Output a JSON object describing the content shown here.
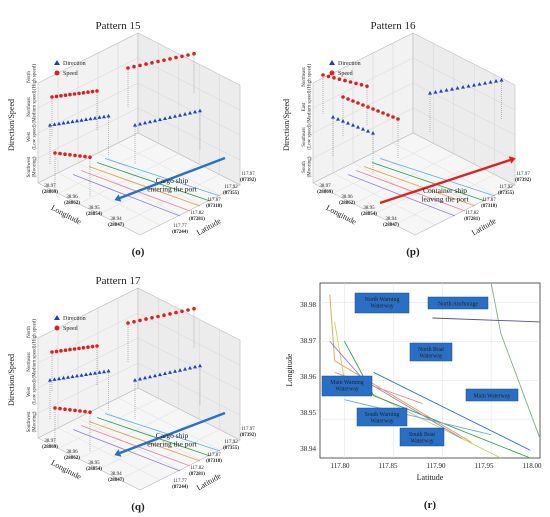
{
  "panels": [
    {
      "id": "o",
      "caption": "(o)",
      "title": "Pattern 15",
      "legend": {
        "direction": "Direction",
        "speed": "Speed"
      },
      "zlabel": "Direction/Speed",
      "zticks": [
        "North\n(High speed)",
        "Northeast\n(Medium speed)",
        "West\n(Low speed)",
        "Southwest\n(Mooring)"
      ],
      "lon_label": "Longitude",
      "lat_label": "Latitude",
      "lon_ticks": [
        {
          "v": "38.97",
          "s": "(28869)"
        },
        {
          "v": "38.96",
          "s": "(28862)"
        },
        {
          "v": "38.95",
          "s": "(28854)"
        },
        {
          "v": "38.94",
          "s": "(28847)"
        }
      ],
      "lat_ticks": [
        {
          "v": "117.97",
          "s": "(87392)"
        },
        {
          "v": "117.92",
          "s": "(87355)"
        },
        {
          "v": "117.87",
          "s": "(87318)"
        },
        {
          "v": "117.82",
          "s": "(87281)"
        },
        {
          "v": "117.77",
          "s": "(87244)"
        }
      ],
      "annotation": "Cargo ship\nentering the port",
      "arrow_color": "#2a70c8",
      "arrow_dir": "in"
    },
    {
      "id": "p",
      "caption": "(p)",
      "title": "Pattern 16",
      "legend": {
        "direction": "Direction",
        "speed": "Speed"
      },
      "zlabel": "Direction/Speed",
      "zticks": [
        "Northeast\n(High speed)",
        "East\n(Medium speed)",
        "Southeast\n(Low speed)",
        "South\n(Mooring)"
      ],
      "lon_label": "Longitude",
      "lat_label": "Latitude",
      "lon_ticks": [
        {
          "v": "38.97",
          "s": "(28869)"
        },
        {
          "v": "38.96",
          "s": "(28862)"
        },
        {
          "v": "38.95",
          "s": "(28854)"
        },
        {
          "v": "38.94",
          "s": "(28847)"
        }
      ],
      "lat_ticks": [
        {
          "v": "117.97",
          "s": "(87392)"
        },
        {
          "v": "117.92",
          "s": "(87355)"
        },
        {
          "v": "117.87",
          "s": "(87318)"
        },
        {
          "v": "117.82",
          "s": "(87281)"
        }
      ],
      "annotation": "Container ship\nleaving the port",
      "arrow_color": "#e02020",
      "arrow_dir": "out"
    },
    {
      "id": "q",
      "caption": "(q)",
      "title": "Pattern 17",
      "legend": {
        "direction": "Direction",
        "speed": "Speed"
      },
      "zlabel": "Direction/Speed",
      "zticks": [
        "North\n(High speed)",
        "Northeast\n(Medium speed)",
        "West\n(Low speed)",
        "Southwest\n(Mooring)"
      ],
      "lon_label": "Longitude",
      "lat_label": "Latitude",
      "lon_ticks": [
        {
          "v": "38.97",
          "s": "(28869)"
        },
        {
          "v": "38.96",
          "s": "(28862)"
        },
        {
          "v": "38.95",
          "s": "(28854)"
        },
        {
          "v": "38.94",
          "s": "(28847)"
        }
      ],
      "lat_ticks": [
        {
          "v": "117.97",
          "s": "(87392)"
        },
        {
          "v": "117.92",
          "s": "(87355)"
        },
        {
          "v": "117.87",
          "s": "(87318)"
        },
        {
          "v": "117.82",
          "s": "(87281)"
        },
        {
          "v": "117.77",
          "s": "(87244)"
        }
      ],
      "annotation": "Cargo ship\nentering the port",
      "arrow_color": "#2a70c8",
      "arrow_dir": "in"
    }
  ],
  "map_panel": {
    "caption": "(r)",
    "xlabel": "Latitude",
    "ylabel": "Longitude",
    "xticks": [
      "117.80",
      "117.85",
      "117.90",
      "117.95",
      "118.00"
    ],
    "yticks": [
      "38.98",
      "38.97",
      "38.96",
      "38.95",
      "38.94"
    ],
    "labels": [
      {
        "text": "North Warning\nWaterway"
      },
      {
        "text": "North Anchorage"
      },
      {
        "text": "North Boat\nWaterway"
      },
      {
        "text": "Main Warning\nWaterway"
      },
      {
        "text": "Main Waterway"
      },
      {
        "text": "South Warning\nWaterway"
      },
      {
        "text": "South Boat\nWaterway"
      }
    ]
  },
  "chart_data": [
    {
      "type": "scatter",
      "title": "Pattern 15",
      "xlabel": "Latitude",
      "ylabel": "Longitude",
      "zlabel": "Direction/Speed",
      "series": [
        {
          "name": "Direction",
          "marker": "triangle",
          "color": "#1f3fc4"
        },
        {
          "name": "Speed",
          "marker": "circle",
          "color": "#e02020"
        }
      ]
    },
    {
      "type": "scatter",
      "title": "Pattern 16",
      "xlabel": "Latitude",
      "ylabel": "Longitude",
      "zlabel": "Direction/Speed",
      "series": [
        {
          "name": "Direction",
          "marker": "triangle",
          "color": "#1f3fc4"
        },
        {
          "name": "Speed",
          "marker": "circle",
          "color": "#e02020"
        }
      ]
    },
    {
      "type": "scatter",
      "title": "Pattern 17",
      "xlabel": "Latitude",
      "ylabel": "Longitude",
      "zlabel": "Direction/Speed",
      "series": [
        {
          "name": "Direction",
          "marker": "triangle",
          "color": "#1f3fc4"
        },
        {
          "name": "Speed",
          "marker": "circle",
          "color": "#e02020"
        }
      ]
    },
    {
      "type": "line",
      "xlabel": "Latitude",
      "ylabel": "Longitude",
      "xlim": [
        117.775,
        118.0
      ],
      "ylim": [
        38.94,
        38.985
      ],
      "grid": true
    }
  ]
}
